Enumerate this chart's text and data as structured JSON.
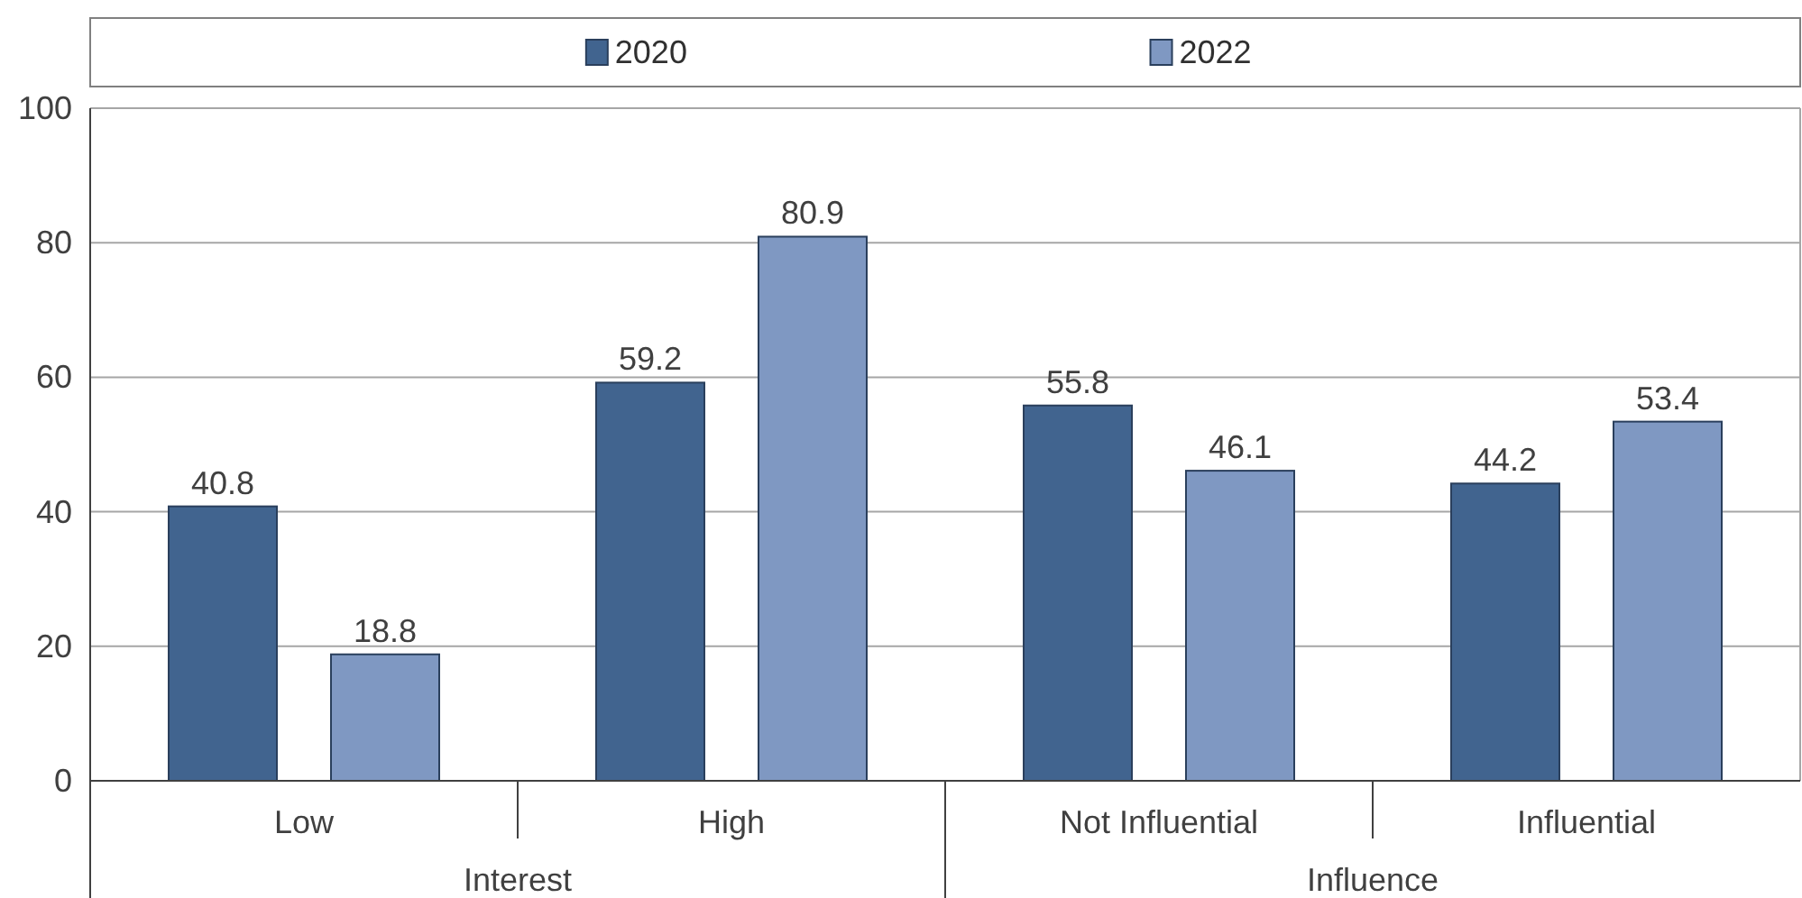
{
  "chart_data": {
    "type": "bar",
    "categories": [
      "Low",
      "High",
      "Not Influential",
      "Influential"
    ],
    "series": [
      {
        "name": "2020",
        "color": "#41648f",
        "values": [
          40.8,
          59.2,
          55.8,
          44.2
        ]
      },
      {
        "name": "2022",
        "color": "#7f98c2",
        "values": [
          18.8,
          80.9,
          46.1,
          53.4
        ]
      }
    ],
    "ylim": [
      0,
      100
    ],
    "yticks": [
      0,
      20,
      40,
      60,
      80,
      100
    ],
    "grid": "y",
    "legend": "top",
    "data_labels": true,
    "annotations": [
      "Interest",
      "Influence"
    ]
  }
}
